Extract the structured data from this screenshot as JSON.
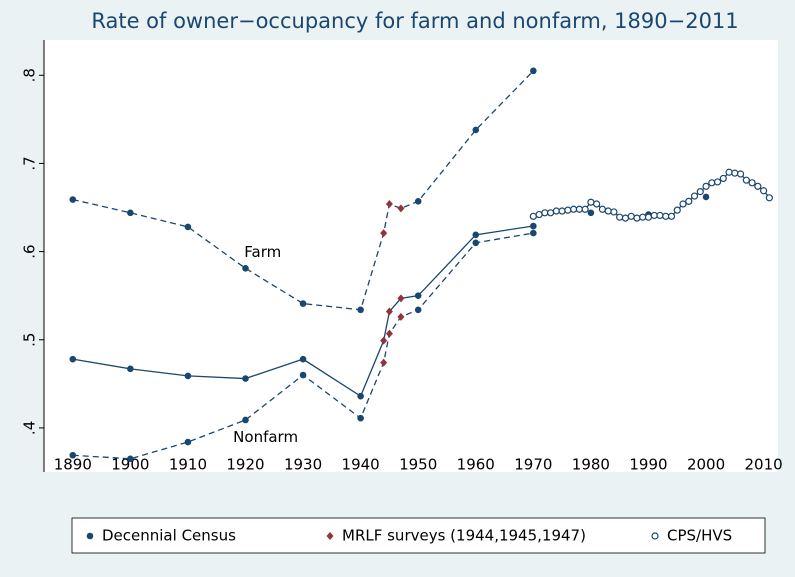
{
  "chart_data": {
    "type": "line",
    "title": "Rate of owner−occupancy for farm and nonfarm, 1890−2011",
    "xlim": [
      1885,
      2012.5
    ],
    "ylim": [
      0.35,
      0.84
    ],
    "xticks": [
      1890,
      1900,
      1910,
      1920,
      1930,
      1940,
      1950,
      1960,
      1970,
      1980,
      1990,
      2000,
      2010
    ],
    "yticks": [
      {
        "value": 0.4,
        "label": ".4"
      },
      {
        "value": 0.5,
        "label": ".5"
      },
      {
        "value": 0.6,
        "label": ".6"
      },
      {
        "value": 0.7,
        "label": ".7"
      },
      {
        "value": 0.8,
        "label": ".8"
      }
    ],
    "series": [
      {
        "name": "Decennial Census",
        "color": "#1a476f",
        "marker": "circle"
      },
      {
        "name": "MRLF surveys (1944,1945,1947)",
        "color": "#90353b",
        "marker": "diamond"
      },
      {
        "name": "CPS/HVS",
        "color": "#1a476f",
        "marker": "hollow-circle"
      }
    ],
    "lines": [
      {
        "style": "dashed",
        "x": [
          1890,
          1900,
          1910,
          1920,
          1930,
          1940,
          1944,
          1945,
          1947,
          1950,
          1960,
          1970
        ],
        "values": [
          0.659,
          0.644,
          0.628,
          0.581,
          0.541,
          0.534,
          0.621,
          0.654,
          0.649,
          0.657,
          0.738,
          0.805
        ],
        "markers": [
          0,
          0,
          0,
          0,
          0,
          0,
          1,
          1,
          1,
          0,
          0,
          0
        ]
      },
      {
        "style": "solid",
        "x": [
          1890,
          1900,
          1910,
          1920,
          1930,
          1940,
          1944,
          1945,
          1947,
          1950,
          1960,
          1970
        ],
        "values": [
          0.478,
          0.467,
          0.459,
          0.456,
          0.478,
          0.436,
          0.499,
          0.532,
          0.547,
          0.55,
          0.619,
          0.629
        ],
        "markers": [
          0,
          0,
          0,
          0,
          0,
          0,
          1,
          1,
          1,
          0,
          0,
          0
        ]
      },
      {
        "style": "dashed",
        "x": [
          1890,
          1900,
          1910,
          1920,
          1930,
          1940,
          1944,
          1945,
          1947,
          1950,
          1960,
          1970
        ],
        "values": [
          0.369,
          0.365,
          0.384,
          0.409,
          0.46,
          0.411,
          0.474,
          0.507,
          0.526,
          0.534,
          0.61,
          0.621
        ],
        "markers": [
          0,
          0,
          0,
          0,
          0,
          0,
          1,
          1,
          1,
          0,
          0,
          0
        ]
      },
      {
        "style": "none",
        "x": [
          1980,
          1990,
          2000
        ],
        "values": [
          0.644,
          0.642,
          0.662
        ],
        "markers": [
          0,
          0,
          0
        ]
      },
      {
        "style": "solid",
        "x": [
          1970,
          1971,
          1972,
          1973,
          1974,
          1975,
          1976,
          1977,
          1978,
          1979,
          1980,
          1981,
          1982,
          1983,
          1984,
          1985,
          1986,
          1987,
          1988,
          1989,
          1990,
          1991,
          1992,
          1993,
          1994,
          1995,
          1996,
          1997,
          1998,
          1999,
          2000,
          2001,
          2002,
          2003,
          2004,
          2005,
          2006,
          2007,
          2008,
          2009,
          2010,
          2011
        ],
        "values": [
          0.64,
          0.642,
          0.644,
          0.644,
          0.646,
          0.646,
          0.647,
          0.648,
          0.648,
          0.648,
          0.656,
          0.654,
          0.648,
          0.646,
          0.645,
          0.639,
          0.638,
          0.64,
          0.638,
          0.639,
          0.639,
          0.641,
          0.641,
          0.64,
          0.64,
          0.647,
          0.654,
          0.657,
          0.663,
          0.668,
          0.674,
          0.678,
          0.679,
          0.683,
          0.69,
          0.689,
          0.688,
          0.681,
          0.678,
          0.674,
          0.669,
          0.661
        ],
        "markers": [
          2,
          2,
          2,
          2,
          2,
          2,
          2,
          2,
          2,
          2,
          2,
          2,
          2,
          2,
          2,
          2,
          2,
          2,
          2,
          2,
          2,
          2,
          2,
          2,
          2,
          2,
          2,
          2,
          2,
          2,
          2,
          2,
          2,
          2,
          2,
          2,
          2,
          2,
          2,
          2,
          2,
          2
        ]
      }
    ],
    "annotations": [
      {
        "text": "Farm",
        "x": 1923,
        "y": 0.599
      },
      {
        "text": "Nonfarm",
        "x": 1923.5,
        "y": 0.389
      }
    ]
  }
}
